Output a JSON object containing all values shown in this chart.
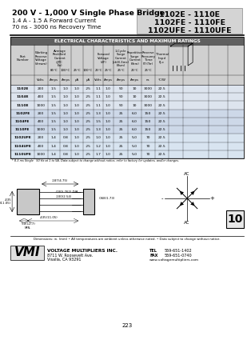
{
  "title_left_line1": "200 V - 1,000 V Single Phase Bridge",
  "title_left_line2": "1.4 A - 1.5 A Forward Current",
  "title_left_line3": "70 ns - 3000 ns Recovery Time",
  "title_right_line1": "1102E - 1110E",
  "title_right_line2": "1102FE - 1110FE",
  "title_right_line3": "1102UFE - 1110UFE",
  "table_title": "ELECTRICAL CHARACTERISTICS AND MAXIMUM RATINGS",
  "rows": [
    [
      "1102E",
      "200",
      "1.5",
      "1.0",
      "1.0",
      ".25",
      "1.1",
      "1.0",
      "50",
      "10",
      "3000",
      "22.5"
    ],
    [
      "1104E",
      "400",
      "1.5",
      "1.0",
      "1.0",
      ".25",
      "1.1",
      "1.0",
      "50",
      "10",
      "3000",
      "22.5"
    ],
    [
      "1110E",
      "1000",
      "1.5",
      "1.0",
      "1.0",
      ".25",
      "1.1",
      "1.0",
      "50",
      "10",
      "3000",
      "22.5"
    ],
    [
      "1102FE",
      "200",
      "1.5",
      "1.0",
      "1.0",
      ".25",
      "1.3",
      "1.0",
      "25",
      "6.0",
      "150",
      "22.5"
    ],
    [
      "1104FE",
      "400",
      "1.5",
      "1.0",
      "1.0",
      ".25",
      "1.5",
      "1.0",
      "25",
      "6.0",
      "150",
      "22.5"
    ],
    [
      "1110FE",
      "1000",
      "1.5",
      "1.0",
      "1.0",
      ".25",
      "1.3",
      "1.0",
      "25",
      "6.0",
      "150",
      "22.5"
    ],
    [
      "1102UFE",
      "200",
      "1.4",
      "0.8",
      "1.0",
      ".25",
      "1.0",
      "1.0",
      "25",
      "5.0",
      "70",
      "22.5"
    ],
    [
      "1104UFE",
      "400",
      "1.4",
      "0.8",
      "1.0",
      ".25",
      "1.2",
      "1.0",
      "25",
      "5.0",
      "70",
      "22.5"
    ],
    [
      "1110UFE",
      "1000",
      "1.4",
      "0.8",
      "1.0",
      ".25",
      "1.7",
      "1.0",
      "25",
      "5.0",
      "70",
      "22.5"
    ]
  ],
  "footnote": "* 8.3 ms Single   50 Hz at 1 to 5A. Data subject to change without notice, refer to factory for updates, and/or changes.",
  "dim_note": "Dimensions: in. (mm) • All temperatures are ambient unless otherwise noted. • Data subject to change without notice.",
  "company": "VOLTAGE MULTIPLIERS INC.",
  "address": "8711 W. Roosevelt Ave.",
  "city": "Visalia, CA 93291",
  "tel_label": "TEL",
  "tel_val": "559-651-1402",
  "fax_label": "FAX",
  "fax_val": "559-651-0740",
  "web": "www.voltagemultipliers.com",
  "page_num": "223",
  "section_num": "10",
  "bg_color": "#ffffff"
}
